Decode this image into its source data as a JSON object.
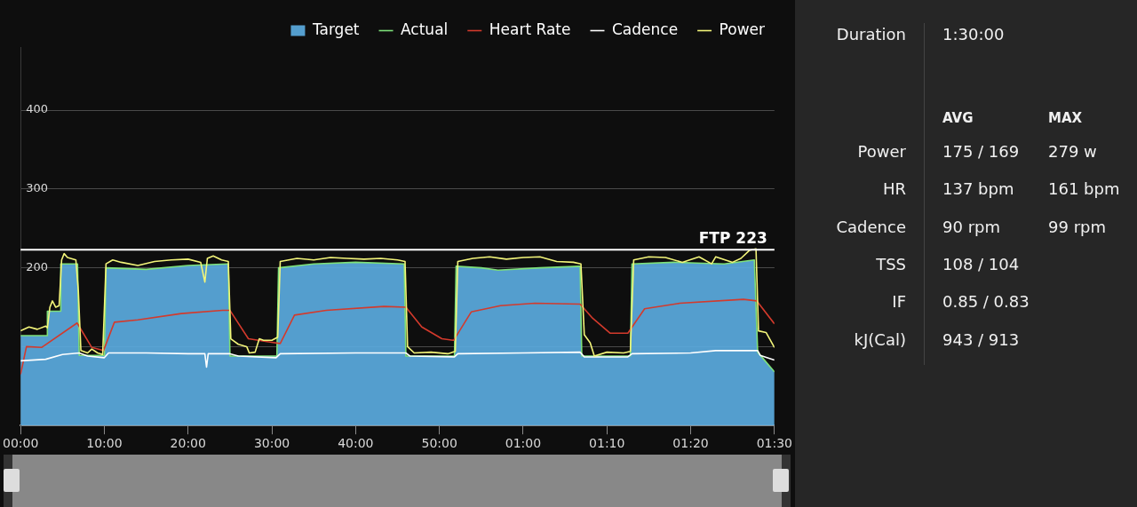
{
  "chart_data": [
    {
      "type": "line",
      "legend": "top right",
      "grid": "y",
      "xlim": [
        0,
        90
      ],
      "ylim": [
        0,
        480
      ],
      "xticks": [
        {
          "value": 0,
          "label": "00:00"
        },
        {
          "value": 10,
          "label": "10:00"
        },
        {
          "value": 20,
          "label": "20:00"
        },
        {
          "value": 30,
          "label": "30:00"
        },
        {
          "value": 40,
          "label": "40:00"
        },
        {
          "value": 50,
          "label": "50:00"
        },
        {
          "value": 60,
          "label": "01:00"
        },
        {
          "value": 70,
          "label": "01:10"
        },
        {
          "value": 80,
          "label": "01:20"
        },
        {
          "value": 90,
          "label": "01:30"
        }
      ],
      "yticks": [
        {
          "value": 100,
          "label": null
        },
        200,
        300,
        400
      ],
      "ref_lines": [
        {
          "axis": "y",
          "value": 223,
          "label": "FTP 223",
          "color": "#ffffff"
        }
      ],
      "series": [
        {
          "name": "Target",
          "type": "area",
          "color": "#5aa9dd",
          "x": [
            0,
            3.2,
            3.2,
            4.8,
            4.8,
            6.8,
            7.0,
            10.0,
            10.2,
            15,
            20,
            24.8,
            25.0,
            30.6,
            30.8,
            35,
            40,
            45.8,
            46.0,
            51.8,
            52.0,
            55,
            57,
            62,
            66.8,
            67.0,
            72.8,
            73.0,
            78,
            84,
            87.6,
            88.0,
            90
          ],
          "values": [
            114,
            114,
            145,
            145,
            205,
            205,
            89,
            89,
            200,
            198,
            203,
            205,
            88,
            88,
            200,
            205,
            207,
            205,
            88,
            88,
            202,
            200,
            197,
            200,
            202,
            88,
            88,
            205,
            207,
            205,
            210,
            93,
            68
          ]
        },
        {
          "name": "Actual",
          "type": "line",
          "color": "#7ee07a",
          "x": [
            0,
            3.2,
            3.2,
            4.8,
            4.8,
            6.8,
            7.0,
            10.0,
            10.2,
            15,
            20,
            24.8,
            25.0,
            30.6,
            30.8,
            35,
            40,
            45.8,
            46.0,
            51.8,
            52.0,
            55,
            57,
            62,
            66.8,
            67.0,
            72.8,
            73.0,
            78,
            84,
            87.6,
            88.0,
            90
          ],
          "values": [
            114,
            114,
            145,
            145,
            205,
            205,
            89,
            89,
            200,
            198,
            203,
            205,
            88,
            88,
            200,
            205,
            207,
            205,
            88,
            88,
            202,
            200,
            197,
            200,
            202,
            88,
            88,
            205,
            207,
            205,
            210,
            93,
            68
          ]
        },
        {
          "name": "Heart Rate",
          "type": "line",
          "color": "#d33a2c",
          "x": [
            0,
            0.7,
            2.5,
            6.75,
            8.5,
            9.9,
            11.2,
            14,
            19.2,
            24.1,
            25,
            27.2,
            29.6,
            31,
            32.7,
            36.5,
            43.4,
            46,
            47.9,
            50.3,
            51.7,
            53.8,
            57.3,
            61.4,
            66.8,
            68.3,
            70.4,
            72.5,
            74.5,
            78.7,
            86.3,
            87.9,
            90
          ],
          "values": [
            65,
            100,
            99,
            130,
            99,
            95,
            131,
            134,
            142,
            146,
            146,
            110,
            106,
            104,
            140,
            146,
            151,
            150,
            125,
            110,
            108,
            144,
            152,
            155,
            154,
            136,
            117,
            117,
            148,
            155,
            160,
            158,
            129
          ]
        },
        {
          "name": "Cadence",
          "type": "line",
          "color": "#ffffff",
          "x": [
            0,
            3,
            5,
            7,
            8,
            10,
            10.5,
            15,
            20,
            22,
            22.2,
            22.4,
            25,
            26,
            30.5,
            31,
            40,
            46,
            46.5,
            51.8,
            52.2,
            60,
            66.8,
            67.3,
            72.5,
            73,
            80,
            83,
            88,
            88.3,
            90
          ],
          "values": [
            82,
            84,
            90,
            92,
            88,
            86,
            92,
            92,
            91,
            91,
            74,
            91,
            91,
            88,
            86,
            91,
            92,
            92,
            88,
            87,
            91,
            92,
            93,
            87,
            87,
            91,
            92,
            95,
            95,
            89,
            83
          ]
        },
        {
          "name": "Power",
          "type": "line",
          "color": "#f3f57a",
          "x": [
            0,
            1,
            2,
            3,
            3.2,
            3.5,
            3.8,
            4.2,
            4.6,
            4.9,
            5.2,
            5.6,
            6.6,
            6.9,
            7.2,
            8,
            8.5,
            9.2,
            9.8,
            10.2,
            11,
            12,
            14,
            16,
            18,
            20,
            21.5,
            22,
            22.3,
            23,
            24,
            24.8,
            25.1,
            26,
            27,
            27.3,
            28,
            28.5,
            29,
            30,
            30.7,
            31,
            33,
            35,
            37,
            39,
            41,
            43,
            45,
            45.9,
            46.2,
            47,
            49,
            51,
            51.9,
            52.2,
            54,
            56,
            58,
            60,
            62,
            64,
            66,
            66.9,
            67.3,
            68,
            68.5,
            70,
            72,
            72.8,
            73.2,
            75,
            77,
            79,
            81,
            82.5,
            83,
            85,
            86,
            87,
            87.8,
            88.1,
            89,
            90
          ],
          "values": [
            120,
            125,
            122,
            126,
            124,
            150,
            158,
            150,
            152,
            210,
            218,
            213,
            210,
            170,
            95,
            92,
            97,
            92,
            90,
            205,
            210,
            207,
            203,
            208,
            210,
            211,
            207,
            182,
            212,
            215,
            210,
            208,
            110,
            103,
            100,
            92,
            93,
            110,
            108,
            108,
            112,
            208,
            212,
            210,
            213,
            212,
            211,
            212,
            210,
            208,
            100,
            92,
            93,
            91,
            94,
            208,
            212,
            214,
            211,
            213,
            214,
            208,
            207,
            205,
            115,
            105,
            88,
            93,
            92,
            94,
            210,
            214,
            213,
            207,
            214,
            205,
            214,
            207,
            212,
            222,
            224,
            120,
            118,
            99
          ]
        }
      ]
    },
    {
      "type": "other",
      "annotations": [
        "Duration",
        "1:30:00",
        "AVG",
        "MAX",
        "Power",
        "175 / 169",
        "279 w",
        "HR",
        "137 bpm",
        "161 bpm",
        "Cadence",
        "90 rpm",
        "99 rpm",
        "TSS",
        "108 / 104",
        "IF",
        "0.85 / 0.83",
        "kJ(Cal)",
        "943 / 913"
      ]
    }
  ]
}
